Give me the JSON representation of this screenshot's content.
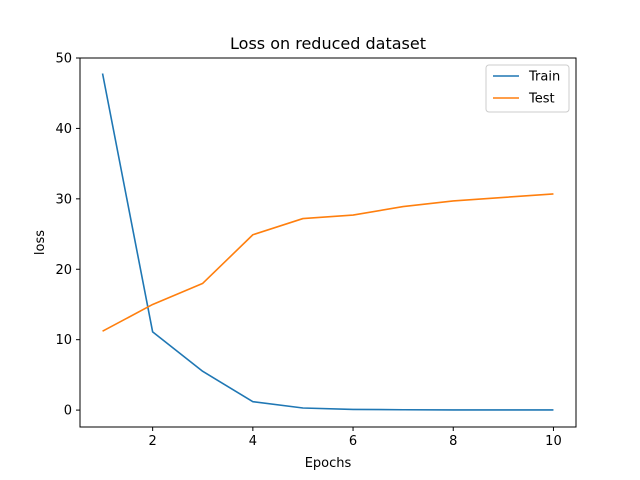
{
  "chart_data": {
    "type": "line",
    "title": "Loss on reduced dataset",
    "xlabel": "Epochs",
    "ylabel": "loss",
    "x": [
      1,
      2,
      3,
      4,
      5,
      6,
      7,
      8,
      9,
      10
    ],
    "xlim": [
      0.55,
      10.45
    ],
    "ylim": [
      -2.4,
      50
    ],
    "xticks": [
      2,
      4,
      6,
      8,
      10
    ],
    "yticks": [
      0,
      10,
      20,
      30,
      40,
      50
    ],
    "grid": false,
    "legend": "top-right",
    "series": [
      {
        "name": "Train",
        "color": "#1f77b4",
        "values": [
          47.8,
          11.1,
          5.5,
          1.2,
          0.3,
          0.1,
          0.05,
          0.03,
          0.02,
          0.02
        ]
      },
      {
        "name": "Test",
        "color": "#ff7f0e",
        "values": [
          11.2,
          15.0,
          18.0,
          24.9,
          27.2,
          27.7,
          28.9,
          29.7,
          30.2,
          30.7
        ]
      }
    ]
  }
}
